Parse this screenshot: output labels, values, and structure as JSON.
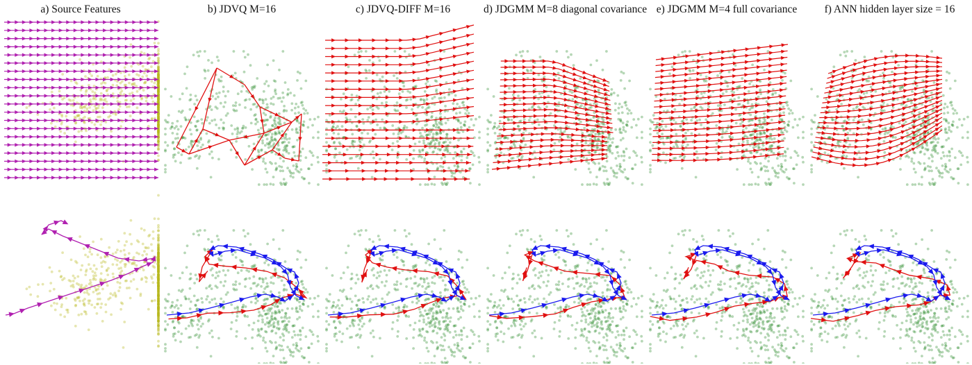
{
  "panels": [
    {
      "label": "a) Source Features",
      "scatter": "#b8b81e",
      "type": "grid",
      "arrow": "#b020b0"
    },
    {
      "label": "b) JDVQ M=16",
      "scatter": "#2e8b2e",
      "type": "mesh",
      "arrow": "#e01010"
    },
    {
      "label": "c) JDVQ-DIFF M=16",
      "scatter": "#2e8b2e",
      "type": "grid-warp",
      "arrow": "#e01010"
    },
    {
      "label": "d) JDGMM M=8 diagonal covariance",
      "scatter": "#2e8b2e",
      "type": "grid-warp",
      "arrow": "#e01010"
    },
    {
      "label": "e) JDGMM M=4 full covariance",
      "scatter": "#2e8b2e",
      "type": "grid-warp",
      "arrow": "#e01010"
    },
    {
      "label": "f) ANN hidden layer size = 16",
      "scatter": "#2e8b2e",
      "type": "grid-warp",
      "arrow": "#e01010"
    }
  ],
  "colors": {
    "source_scatter": "#b8b81e",
    "target_scatter": "#2e8b2e",
    "source_trajectory": "#b020b0",
    "converted_trajectory": "#e01010",
    "target_trajectory": "#1a1aee"
  }
}
